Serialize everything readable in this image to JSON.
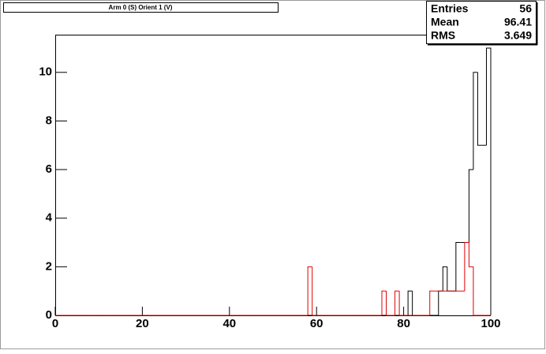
{
  "chart_data": {
    "type": "histogram",
    "title": "Arm 0 (S) Orient 1 (V)",
    "bins": [
      0,
      1,
      2,
      3,
      4,
      5,
      6,
      7,
      8,
      9,
      10,
      11,
      12,
      13,
      14,
      15,
      16,
      17,
      18,
      19,
      20,
      21,
      22,
      23,
      24,
      25,
      26,
      27,
      28,
      29,
      30,
      31,
      32,
      33,
      34,
      35,
      36,
      37,
      38,
      39,
      40,
      41,
      42,
      43,
      44,
      45,
      46,
      47,
      48,
      49,
      50,
      51,
      52,
      53,
      54,
      55,
      56,
      57,
      58,
      59,
      60,
      61,
      62,
      63,
      64,
      65,
      66,
      67,
      68,
      69,
      70,
      71,
      72,
      73,
      74,
      75,
      76,
      77,
      78,
      79,
      80,
      81,
      82,
      83,
      84,
      85,
      86,
      87,
      88,
      89,
      90,
      91,
      92,
      93,
      94,
      95,
      96,
      97,
      98,
      99,
      100
    ],
    "series": [
      {
        "color": "#000000",
        "values": [
          0,
          0,
          0,
          0,
          0,
          0,
          0,
          0,
          0,
          0,
          0,
          0,
          0,
          0,
          0,
          0,
          0,
          0,
          0,
          0,
          0,
          0,
          0,
          0,
          0,
          0,
          0,
          0,
          0,
          0,
          0,
          0,
          0,
          0,
          0,
          0,
          0,
          0,
          0,
          0,
          0,
          0,
          0,
          0,
          0,
          0,
          0,
          0,
          0,
          0,
          0,
          0,
          0,
          0,
          0,
          0,
          0,
          0,
          0,
          0,
          0,
          0,
          0,
          0,
          0,
          0,
          0,
          0,
          0,
          0,
          0,
          0,
          0,
          0,
          0,
          0,
          0,
          0,
          0,
          0,
          0,
          1,
          0,
          0,
          0,
          0,
          0,
          0,
          1,
          2,
          1,
          1,
          3,
          3,
          3,
          6,
          10,
          7,
          7,
          11
        ]
      },
      {
        "color": "#e00000",
        "values": [
          0,
          0,
          0,
          0,
          0,
          0,
          0,
          0,
          0,
          0,
          0,
          0,
          0,
          0,
          0,
          0,
          0,
          0,
          0,
          0,
          0,
          0,
          0,
          0,
          0,
          0,
          0,
          0,
          0,
          0,
          0,
          0,
          0,
          0,
          0,
          0,
          0,
          0,
          0,
          0,
          0,
          0,
          0,
          0,
          0,
          0,
          0,
          0,
          0,
          0,
          0,
          0,
          0,
          0,
          0,
          0,
          0,
          0,
          2,
          0,
          0,
          0,
          0,
          0,
          0,
          0,
          0,
          0,
          0,
          0,
          0,
          0,
          0,
          0,
          0,
          1,
          0,
          0,
          1,
          0,
          0,
          0,
          0,
          0,
          0,
          0,
          1,
          1,
          1,
          1,
          1,
          1,
          1,
          1,
          3,
          2,
          0,
          0,
          0,
          0
        ]
      }
    ],
    "xlim": [
      0,
      100
    ],
    "xticks": [
      0,
      20,
      40,
      60,
      80,
      100
    ],
    "ylim": [
      0,
      11.55
    ],
    "yticks": [
      0,
      2,
      4,
      6,
      8,
      10
    ],
    "stats": [
      {
        "label": "Entries",
        "value": 56
      },
      {
        "label": "Mean",
        "value": 96.41
      },
      {
        "label": "RMS",
        "value": 3.649
      }
    ]
  }
}
